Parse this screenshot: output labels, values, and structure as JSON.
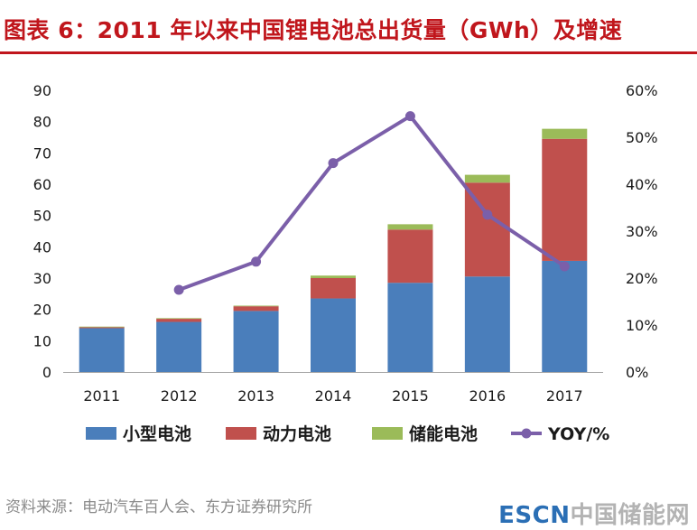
{
  "page": {
    "title": "图表 6：2011 年以来中国锂电池总出货量（GWh）及增速",
    "source": "资料来源：电动汽车百人会、东方证券研究所",
    "watermark": {
      "brand": "ESCN",
      "name": "中国储能网"
    }
  },
  "colors": {
    "title": "#c0161c",
    "small_battery": "#4a7ebb",
    "power_battery": "#c0504d",
    "storage_battery": "#9bbb59",
    "yoy": "#7b5fa9"
  },
  "chart_data": {
    "type": "bar",
    "stacked": true,
    "title": "2011 年以来中国锂电池总出货量（GWh）及增速",
    "categories": [
      "2011",
      "2012",
      "2013",
      "2014",
      "2015",
      "2016",
      "2017"
    ],
    "series": [
      {
        "name": "小型电池",
        "type": "bar",
        "axis": "left",
        "values": [
          14,
          16,
          19.5,
          23.5,
          28.5,
          30.5,
          35.5
        ]
      },
      {
        "name": "动力电池",
        "type": "bar",
        "axis": "left",
        "values": [
          0.3,
          1,
          1.5,
          6.5,
          17,
          30,
          39
        ]
      },
      {
        "name": "储能电池",
        "type": "bar",
        "axis": "left",
        "values": [
          0.2,
          0.2,
          0.2,
          0.8,
          1.7,
          2.5,
          3.2
        ]
      },
      {
        "name": "YOY/%",
        "type": "line",
        "axis": "right",
        "values": [
          null,
          17.5,
          23.5,
          44.5,
          54.5,
          33.5,
          22.5
        ]
      }
    ],
    "y_left": {
      "min": 0,
      "max": 90,
      "step": 10,
      "ticks": [
        "0",
        "10",
        "20",
        "30",
        "40",
        "50",
        "60",
        "70",
        "80",
        "90"
      ]
    },
    "y_right": {
      "min": 0,
      "max": 60,
      "step": 10,
      "ticks": [
        "0%",
        "10%",
        "20%",
        "30%",
        "40%",
        "50%",
        "60%"
      ]
    },
    "legend": {
      "position": "bottom",
      "items": [
        "小型电池",
        "动力电池",
        "储能电池",
        "YOY/%"
      ]
    },
    "grid": false
  }
}
